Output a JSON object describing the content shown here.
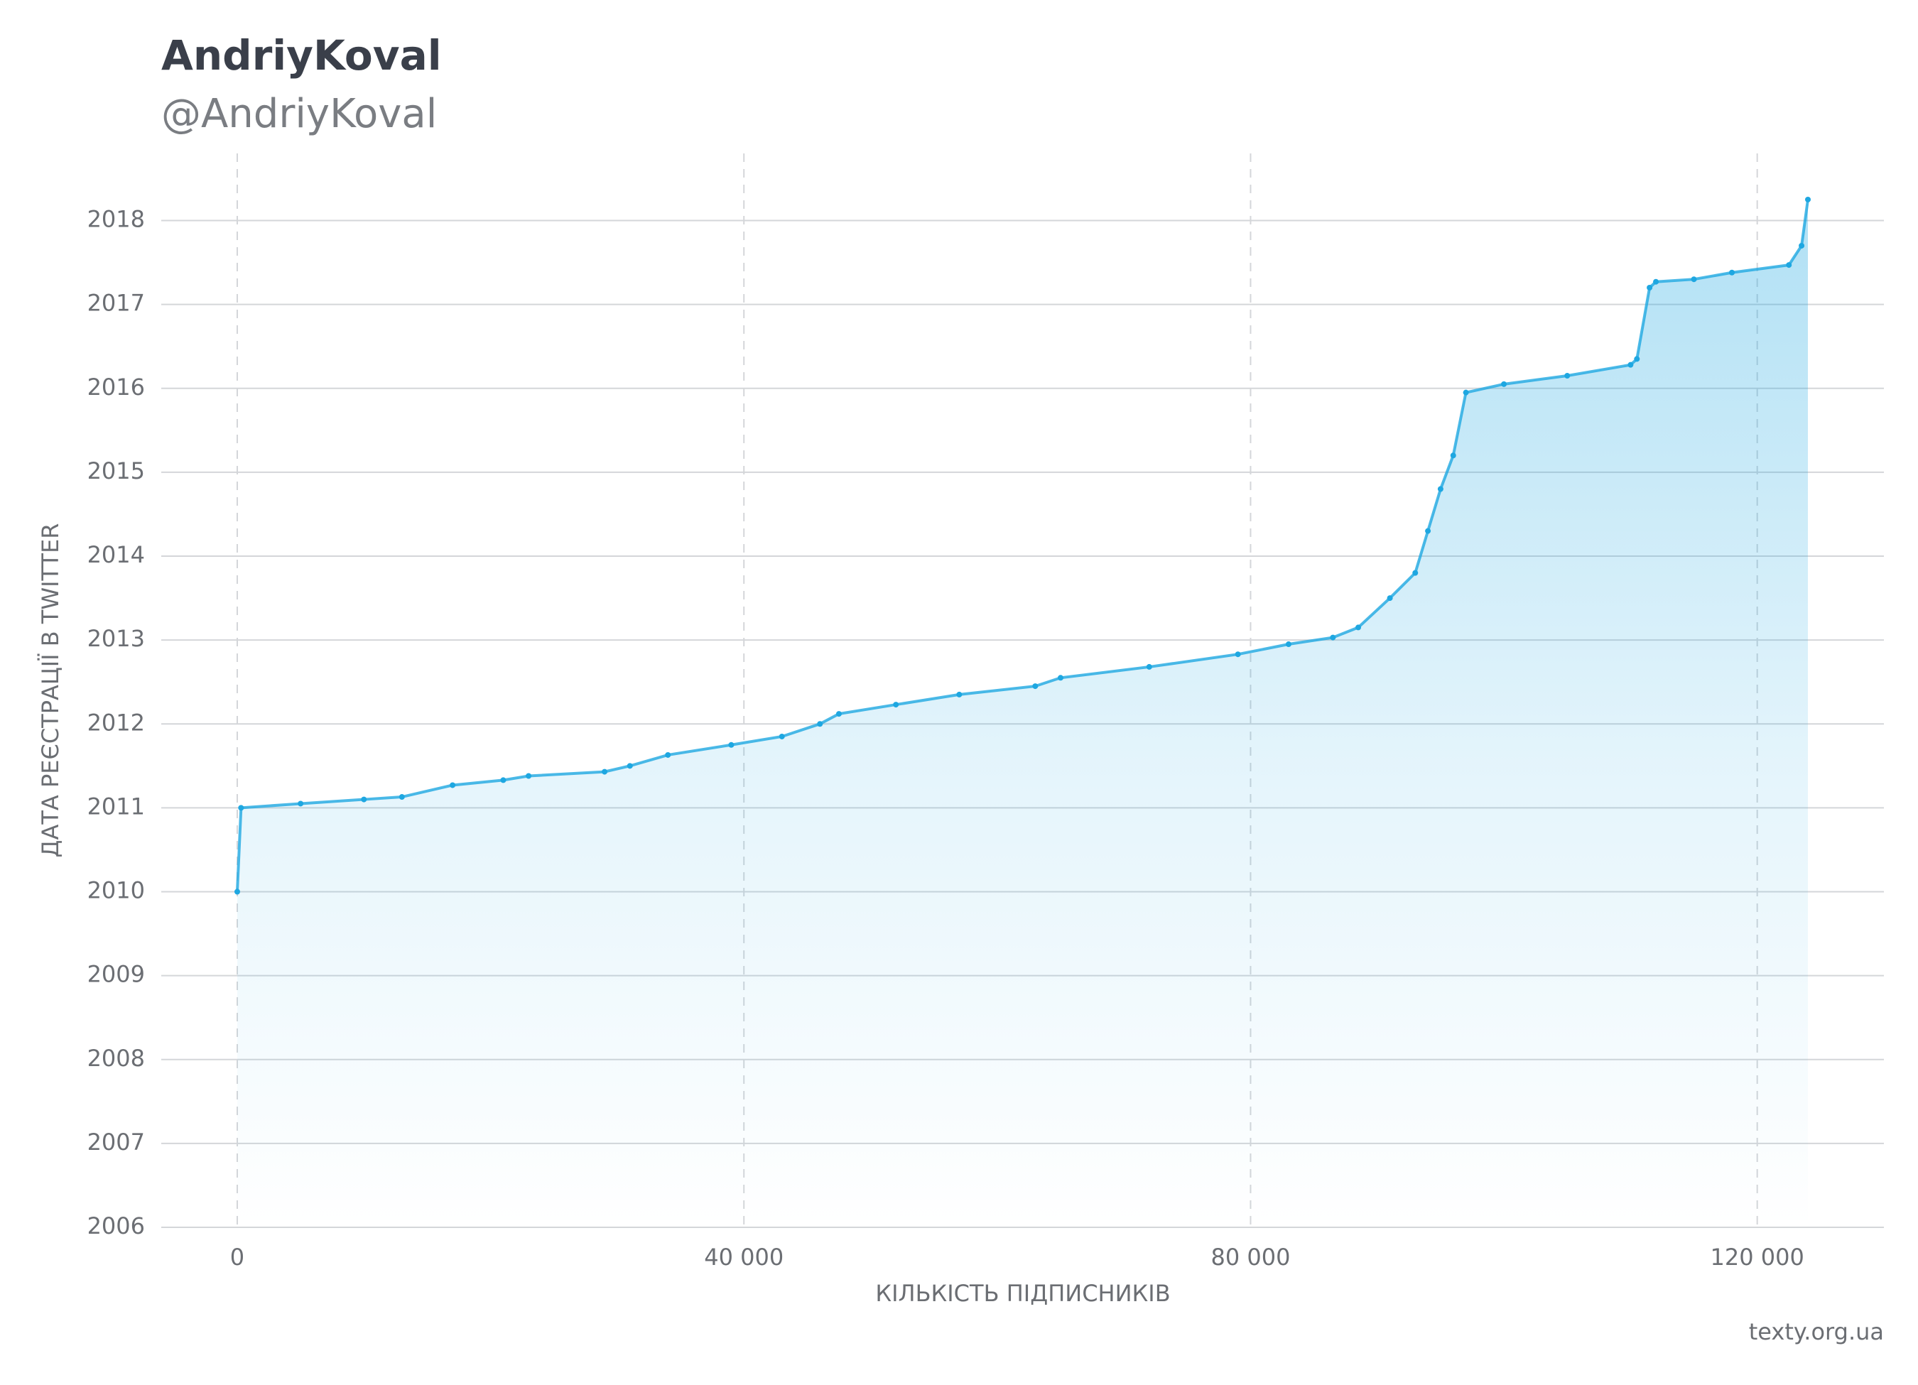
{
  "chart_data": {
    "type": "scatter",
    "title": "AndriyKoval",
    "subtitle": "@AndriyKoval",
    "x_label": "КІЛЬКІСТЬ ПІДПИСНИКІВ",
    "y_label": "ДАТА РЕЄСТРАЦІЇ В TWITTER",
    "source": "texty.org.ua",
    "color": "#1ea7e1",
    "grid": true,
    "xlim": [
      -6000,
      130000
    ],
    "ylim": [
      2006,
      2018.8
    ],
    "xticks": [
      0,
      {
        "value": 40000,
        "label": "40 000"
      },
      {
        "value": 80000,
        "label": "80 000"
      },
      {
        "value": 120000,
        "label": "120 000"
      }
    ],
    "yticks": [
      2006,
      2007,
      2008,
      2009,
      2010,
      2011,
      2012,
      2013,
      2014,
      2015,
      2016,
      2017,
      2018
    ],
    "x": [
      0,
      300,
      5000,
      10000,
      13000,
      17000,
      21000,
      23000,
      29000,
      31000,
      34000,
      39000,
      43000,
      46000,
      47500,
      52000,
      57000,
      63000,
      65000,
      72000,
      79000,
      83000,
      86500,
      88500,
      91000,
      93000,
      94000,
      95000,
      96000,
      97000,
      100000,
      105000,
      110000,
      110500,
      111500,
      112000,
      115000,
      118000,
      122500,
      123500,
      124000
    ],
    "values": [
      2010.0,
      2011.0,
      2011.05,
      2011.1,
      2011.13,
      2011.27,
      2011.33,
      2011.38,
      2011.43,
      2011.5,
      2011.63,
      2011.75,
      2011.85,
      2012.0,
      2012.12,
      2012.23,
      2012.35,
      2012.45,
      2012.55,
      2012.68,
      2012.83,
      2012.95,
      2013.03,
      2013.15,
      2013.5,
      2013.8,
      2014.3,
      2014.8,
      2015.2,
      2015.95,
      2016.05,
      2016.15,
      2016.28,
      2016.35,
      2017.2,
      2017.27,
      2017.3,
      2017.38,
      2017.47,
      2017.7,
      2018.25
    ]
  }
}
